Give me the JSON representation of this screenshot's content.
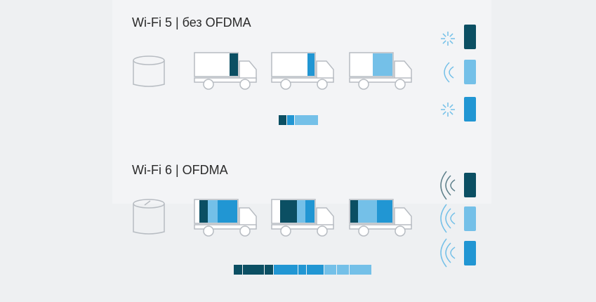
{
  "sections": [
    {
      "title": "Wi-Fi 5 | без OFDMA"
    },
    {
      "title": "Wi-Fi 6 | OFDMA"
    }
  ]
}
